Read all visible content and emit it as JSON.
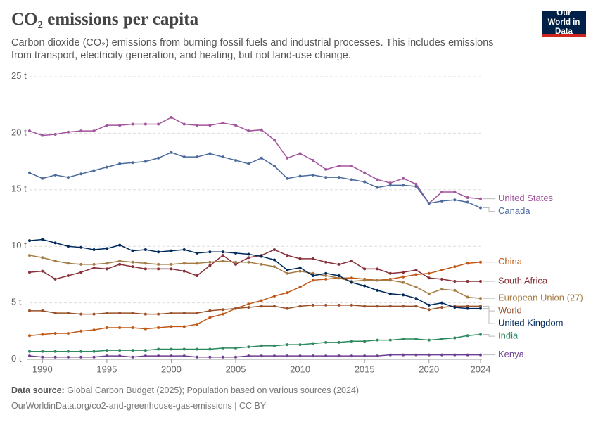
{
  "chart_data": {
    "type": "line",
    "title": "CO₂ emissions per capita",
    "subtitle": "Carbon dioxide (CO₂) emissions from burning fossil fuels and industrial processes. This includes emissions from transport, electricity generation, and heating, but not land-use change.",
    "logo": "Our World in Data",
    "source_label": "Data source:",
    "source": "Global Carbon Budget (2025); Population based on various sources (2024)",
    "footer": "OurWorldinData.org/co2-and-greenhouse-gas-emissions | CC BY",
    "x": [
      1989,
      1990,
      1991,
      1992,
      1993,
      1994,
      1995,
      1996,
      1997,
      1998,
      1999,
      2000,
      2001,
      2002,
      2003,
      2004,
      2005,
      2006,
      2007,
      2008,
      2009,
      2010,
      2011,
      2012,
      2013,
      2014,
      2015,
      2016,
      2017,
      2018,
      2019,
      2020,
      2021,
      2022,
      2023,
      2024
    ],
    "xlim": [
      1989,
      2024
    ],
    "xticks": [
      1990,
      1995,
      2000,
      2005,
      2010,
      2015,
      2020,
      2024
    ],
    "ylim": [
      0,
      25
    ],
    "yticks": [
      {
        "value": 0,
        "label": "0 t"
      },
      {
        "value": 5,
        "label": "5 t"
      },
      {
        "value": 10,
        "label": "10 t"
      },
      {
        "value": 15,
        "label": "15 t"
      },
      {
        "value": 20,
        "label": "20 t"
      },
      {
        "value": 25,
        "label": "25 t"
      }
    ],
    "grid": true,
    "series": [
      {
        "name": "United States",
        "color": "#a2559c",
        "values": [
          20.2,
          19.8,
          19.9,
          20.1,
          20.2,
          20.2,
          20.7,
          20.7,
          20.8,
          20.8,
          20.8,
          21.4,
          20.8,
          20.7,
          20.7,
          20.9,
          20.7,
          20.2,
          20.3,
          19.4,
          17.8,
          18.2,
          17.6,
          16.8,
          17.1,
          17.1,
          16.5,
          15.9,
          15.6,
          16.0,
          15.5,
          13.8,
          14.8,
          14.8,
          14.3,
          14.2
        ]
      },
      {
        "name": "Canada",
        "color": "#4c6a9c",
        "values": [
          16.5,
          16.0,
          16.3,
          16.1,
          16.4,
          16.7,
          17.0,
          17.3,
          17.4,
          17.5,
          17.8,
          18.3,
          17.9,
          17.9,
          18.2,
          17.9,
          17.6,
          17.3,
          17.8,
          17.1,
          16.0,
          16.2,
          16.3,
          16.1,
          16.1,
          15.9,
          15.7,
          15.2,
          15.4,
          15.4,
          15.3,
          13.8,
          14.0,
          14.1,
          13.9,
          13.4
        ]
      },
      {
        "name": "China",
        "color": "#c05917",
        "values": [
          2.1,
          2.2,
          2.3,
          2.3,
          2.5,
          2.6,
          2.8,
          2.8,
          2.8,
          2.7,
          2.8,
          2.9,
          2.9,
          3.1,
          3.7,
          4.0,
          4.5,
          4.9,
          5.2,
          5.6,
          5.9,
          6.4,
          7.0,
          7.1,
          7.2,
          7.2,
          7.1,
          7.0,
          7.1,
          7.3,
          7.5,
          7.6,
          7.9,
          8.2,
          8.5,
          8.6
        ]
      },
      {
        "name": "South Africa",
        "color": "#883039",
        "values": [
          7.7,
          7.8,
          7.1,
          7.4,
          7.7,
          8.1,
          8.0,
          8.4,
          8.2,
          8.0,
          8.0,
          8.0,
          7.8,
          7.4,
          8.3,
          9.2,
          8.4,
          9.0,
          9.2,
          9.7,
          9.2,
          8.9,
          8.9,
          8.6,
          8.4,
          8.7,
          8.0,
          8.0,
          7.6,
          7.7,
          7.9,
          7.2,
          7.1,
          6.9,
          6.9,
          6.9
        ]
      },
      {
        "name": "European Union (27)",
        "color": "#a57c45",
        "values": [
          9.2,
          9.0,
          8.7,
          8.5,
          8.4,
          8.4,
          8.5,
          8.7,
          8.6,
          8.5,
          8.4,
          8.4,
          8.5,
          8.5,
          8.6,
          8.7,
          8.6,
          8.6,
          8.4,
          8.2,
          7.6,
          7.8,
          7.6,
          7.4,
          7.2,
          6.9,
          7.0,
          7.0,
          7.0,
          6.8,
          6.4,
          5.8,
          6.2,
          6.1,
          5.5,
          5.4
        ]
      },
      {
        "name": "World",
        "color": "#9a5129",
        "values": [
          4.3,
          4.3,
          4.1,
          4.1,
          4.0,
          4.0,
          4.1,
          4.1,
          4.1,
          4.0,
          4.0,
          4.1,
          4.1,
          4.1,
          4.3,
          4.4,
          4.5,
          4.6,
          4.7,
          4.7,
          4.5,
          4.7,
          4.8,
          4.8,
          4.8,
          4.8,
          4.7,
          4.7,
          4.7,
          4.7,
          4.7,
          4.4,
          4.6,
          4.7,
          4.7,
          4.7
        ]
      },
      {
        "name": "United Kingdom",
        "color": "#00295b",
        "values": [
          10.5,
          10.6,
          10.3,
          10.0,
          9.9,
          9.7,
          9.8,
          10.1,
          9.6,
          9.7,
          9.5,
          9.6,
          9.7,
          9.4,
          9.5,
          9.5,
          9.4,
          9.3,
          9.1,
          8.8,
          7.9,
          8.1,
          7.4,
          7.6,
          7.4,
          6.8,
          6.5,
          6.1,
          5.8,
          5.7,
          5.4,
          4.8,
          5.0,
          4.6,
          4.5,
          4.5
        ]
      },
      {
        "name": "India",
        "color": "#2e8a5e",
        "values": [
          0.7,
          0.7,
          0.7,
          0.7,
          0.7,
          0.7,
          0.8,
          0.8,
          0.8,
          0.8,
          0.9,
          0.9,
          0.9,
          0.9,
          0.9,
          1.0,
          1.0,
          1.1,
          1.2,
          1.2,
          1.3,
          1.3,
          1.4,
          1.5,
          1.5,
          1.6,
          1.6,
          1.7,
          1.7,
          1.8,
          1.8,
          1.7,
          1.8,
          1.9,
          2.1,
          2.2
        ]
      },
      {
        "name": "Kenya",
        "color": "#6d3e91",
        "values": [
          0.3,
          0.2,
          0.2,
          0.2,
          0.2,
          0.2,
          0.3,
          0.3,
          0.2,
          0.3,
          0.3,
          0.3,
          0.3,
          0.2,
          0.2,
          0.2,
          0.2,
          0.3,
          0.3,
          0.3,
          0.3,
          0.3,
          0.3,
          0.3,
          0.3,
          0.3,
          0.3,
          0.3,
          0.4,
          0.4,
          0.4,
          0.4,
          0.4,
          0.4,
          0.4,
          0.4
        ]
      }
    ]
  }
}
